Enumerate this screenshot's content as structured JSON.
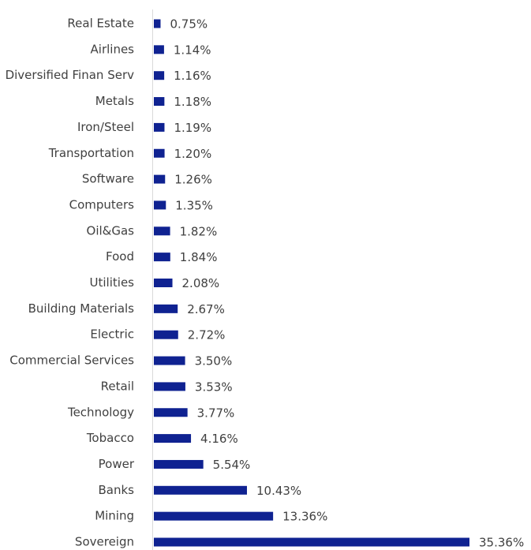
{
  "colors": {
    "bar": "#0f2291",
    "axis": "#d9d9d9",
    "text": "#404040",
    "background": "#ffffff"
  },
  "chart_data": {
    "type": "bar",
    "orientation": "horizontal",
    "categories": [
      "Real Estate",
      "Airlines",
      "Diversified Finan Serv",
      "Metals",
      "Iron/Steel",
      "Transportation",
      "Software",
      "Computers",
      "Oil&Gas",
      "Food",
      "Utilities",
      "Building Materials",
      "Electric",
      "Commercial Services",
      "Retail",
      "Technology",
      "Tobacco",
      "Power",
      "Banks",
      "Mining",
      "Sovereign"
    ],
    "values": [
      0.75,
      1.14,
      1.16,
      1.18,
      1.19,
      1.2,
      1.26,
      1.35,
      1.82,
      1.84,
      2.08,
      2.67,
      2.72,
      3.5,
      3.53,
      3.77,
      4.16,
      5.54,
      10.43,
      13.36,
      35.36
    ],
    "value_labels": [
      "0.75%",
      "1.14%",
      "1.16%",
      "1.18%",
      "1.19%",
      "1.20%",
      "1.26%",
      "1.35%",
      "1.82%",
      "1.84%",
      "2.08%",
      "2.67%",
      "2.72%",
      "3.50%",
      "3.53%",
      "3.77%",
      "4.16%",
      "5.54%",
      "10.43%",
      "13.36%",
      "35.36%"
    ],
    "xlim": [
      0,
      35.36
    ],
    "grid": false,
    "legend": "none"
  }
}
